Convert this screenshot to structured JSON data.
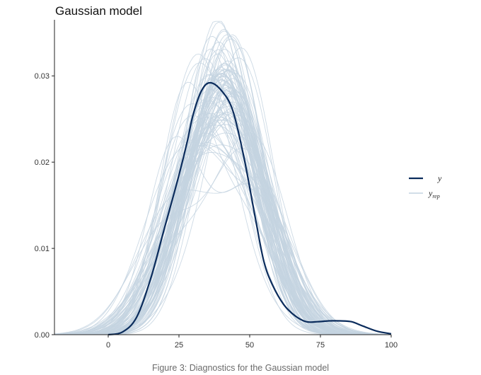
{
  "title": "Gaussian model",
  "caption": "Figure 3: Diagnostics for the Gaussian model",
  "colors": {
    "y": "#0b2c5c",
    "yrep": "#c4d3e0",
    "axis": "#222222",
    "text": "#333333",
    "caption": "#6b6b6b"
  },
  "legend": {
    "y_label": "y",
    "yrep_base": "y",
    "yrep_sub": "rep",
    "placement": "right"
  },
  "chart_data": {
    "type": "line",
    "title": "Gaussian model",
    "xlabel": "",
    "ylabel": "",
    "xlim": [
      -19,
      100
    ],
    "ylim": [
      0,
      0.0365
    ],
    "grid": false,
    "x_ticks": [
      0,
      25,
      50,
      75,
      100
    ],
    "x_tick_labels": [
      "0",
      "25",
      "50",
      "75",
      "100"
    ],
    "y_ticks": [
      0.0,
      0.01,
      0.02,
      0.03
    ],
    "y_tick_labels": [
      "0.00",
      "0.01",
      "0.02",
      "0.03"
    ],
    "series": [
      {
        "name": "y",
        "x": [
          0,
          5,
          10,
          15,
          20,
          25,
          28,
          30,
          33,
          36,
          40,
          44,
          48,
          52,
          55,
          58,
          62,
          66,
          70,
          74,
          78,
          82,
          86,
          90,
          95,
          100
        ],
        "values": [
          0.0,
          0.0003,
          0.002,
          0.0065,
          0.0125,
          0.0185,
          0.0225,
          0.0255,
          0.0283,
          0.0292,
          0.0283,
          0.026,
          0.0205,
          0.0135,
          0.0085,
          0.0058,
          0.0035,
          0.0022,
          0.0015,
          0.0015,
          0.0016,
          0.0016,
          0.0015,
          0.001,
          0.0004,
          0.0001
        ]
      },
      {
        "name": "yrep",
        "draws": 100,
        "approx_mean": 40,
        "approx_sd": 13.5
      }
    ]
  }
}
